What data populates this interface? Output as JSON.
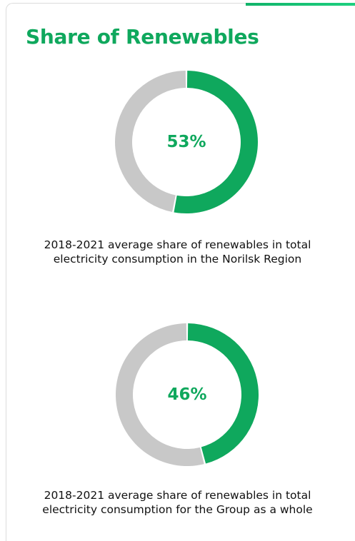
{
  "title": "Share of Renewables",
  "colors": {
    "accent": "#0fa85d",
    "remainder": "#c8c8c8",
    "text": "#111111"
  },
  "chart_data": [
    {
      "type": "pie",
      "donut": true,
      "label": "53%",
      "slices": [
        {
          "value": 53,
          "color": "#0fa85d"
        },
        {
          "value": 47,
          "color": "#c8c8c8"
        }
      ],
      "caption": [
        "2018-2021 average share of renewables in total",
        "electricity consumption in the Norilsk Region"
      ]
    },
    {
      "type": "pie",
      "donut": true,
      "label": "46%",
      "slices": [
        {
          "value": 46,
          "color": "#0fa85d"
        },
        {
          "value": 54,
          "color": "#c8c8c8"
        }
      ],
      "caption": [
        "2018-2021 average share of renewables in total",
        "electricity consumption for the Group as a whole"
      ]
    }
  ]
}
